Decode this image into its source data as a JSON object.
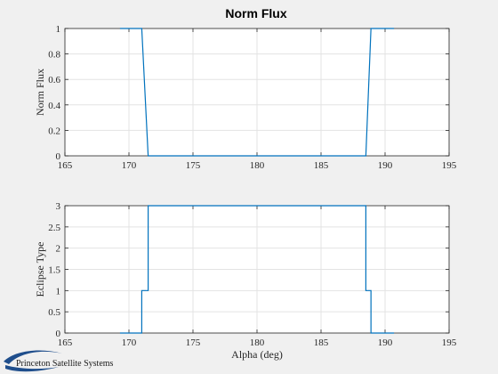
{
  "logo": {
    "text": "Princeton Satellite Systems",
    "color": "#1f4e8c"
  },
  "line_color": "#0072bd",
  "chart_data": [
    {
      "type": "line",
      "title": "Norm Flux",
      "xlabel": "",
      "ylabel": "Norm Flux",
      "xlim": [
        165,
        195
      ],
      "ylim": [
        0,
        1
      ],
      "xticks": [
        165,
        170,
        175,
        180,
        185,
        190,
        195
      ],
      "yticks": [
        0,
        0.2,
        0.4,
        0.6,
        0.8,
        1
      ],
      "ytick_labels": [
        "0",
        "0.2",
        "0.4",
        "0.6",
        "0.8",
        "1"
      ],
      "grid": true,
      "series": [
        {
          "x": [
            169.3,
            171.0,
            171.5,
            188.5,
            188.9,
            190.7
          ],
          "y": [
            1,
            1,
            0,
            0,
            1,
            1
          ]
        }
      ]
    },
    {
      "type": "line",
      "title": "",
      "xlabel": "Alpha (deg)",
      "ylabel": "Eclipse Type",
      "xlim": [
        165,
        195
      ],
      "ylim": [
        0,
        3
      ],
      "xticks": [
        165,
        170,
        175,
        180,
        185,
        190,
        195
      ],
      "yticks": [
        0,
        0.5,
        1,
        1.5,
        2,
        2.5,
        3
      ],
      "ytick_labels": [
        "0",
        "0.5",
        "1",
        "1.5",
        "2",
        "2.5",
        "3"
      ],
      "grid": true,
      "series": [
        {
          "x": [
            169.3,
            171.0,
            171.0,
            171.5,
            171.5,
            188.5,
            188.5,
            188.9,
            188.9,
            190.7
          ],
          "y": [
            0,
            0,
            1,
            1,
            3,
            3,
            1,
            1,
            0,
            0
          ]
        }
      ]
    }
  ]
}
